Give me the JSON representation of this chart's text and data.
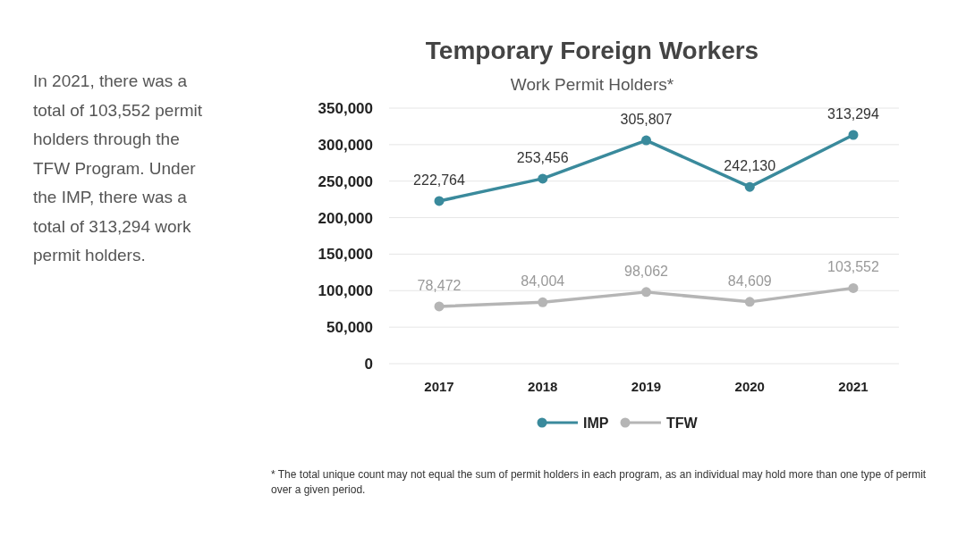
{
  "chart_data": {
    "type": "line",
    "title": "Temporary Foreign Workers",
    "subtitle": "Work Permit Holders*",
    "categories": [
      "2017",
      "2018",
      "2019",
      "2020",
      "2021"
    ],
    "series": [
      {
        "name": "IMP",
        "color": "#3a8a9c",
        "values": [
          222764,
          253456,
          305807,
          242130,
          313294
        ],
        "value_labels": [
          "222,764",
          "253,456",
          "305,807",
          "242,130",
          "313,294"
        ]
      },
      {
        "name": "TFW",
        "color": "#b5b5b5",
        "values": [
          78472,
          84004,
          98062,
          84609,
          103552
        ],
        "value_labels": [
          "78,472",
          "84,004",
          "98,062",
          "84,609",
          "103,552"
        ]
      }
    ],
    "ylim": [
      0,
      350000
    ],
    "yticks": [
      {
        "value": 0,
        "label": "0"
      },
      {
        "value": 50000,
        "label": "50,000"
      },
      {
        "value": 100000,
        "label": "100,000"
      },
      {
        "value": 150000,
        "label": "150,000"
      },
      {
        "value": 200000,
        "label": "200,000"
      },
      {
        "value": 250000,
        "label": "250,000"
      },
      {
        "value": 300000,
        "label": "300,000"
      },
      {
        "value": 350000,
        "label": "350,000"
      }
    ],
    "grid": "y",
    "legend": "bottom",
    "marker": "circle",
    "line_style": "solid",
    "annotations": [
      "In 2021, there was a total of 103,552 permit holders through the TFW Program. Under the IMP, there was a total of 313,294 work permit holders.",
      "* The total unique count may not equal the sum of permit holders in each program, as an individual may hold more than one type of permit over a given period."
    ]
  }
}
